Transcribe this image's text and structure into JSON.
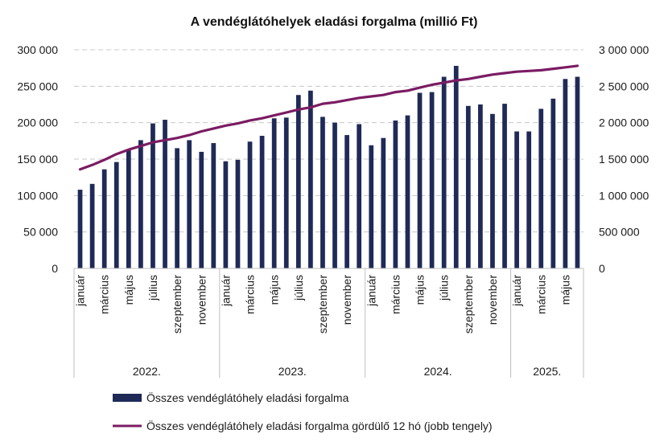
{
  "chart_data": {
    "type": "bar",
    "title": "A vendéglátóhelyek eladási forgalma (millió Ft)",
    "colors": {
      "bar": "#1f2a57",
      "line": "#7b1c63",
      "grid": "#c8c8c8",
      "axis": "#bfbfbf"
    },
    "left_axis": {
      "range": [
        0,
        300000
      ],
      "ticks": [
        "0",
        "50 000",
        "100 000",
        "150 000",
        "200 000",
        "250 000",
        "300 000"
      ]
    },
    "right_axis": {
      "range": [
        0,
        3000000
      ],
      "ticks": [
        "0",
        "500 000",
        "1 000 000",
        "1 500 000",
        "2 000 000",
        "2 500 000",
        "3 000 000"
      ]
    },
    "grid": true,
    "legend_placement": "bottom",
    "month_labels": [
      "január",
      "",
      "március",
      "",
      "május",
      "",
      "július",
      "",
      "szeptember",
      "",
      "november",
      "",
      "január",
      "",
      "március",
      "",
      "május",
      "",
      "július",
      "",
      "szeptember",
      "",
      "november",
      "",
      "január",
      "",
      "március",
      "",
      "május",
      "",
      "július",
      "",
      "szeptember",
      "",
      "november",
      "",
      "január",
      "",
      "március",
      "",
      "május",
      ""
    ],
    "years": [
      {
        "label": "2022.",
        "months": 12
      },
      {
        "label": "2023.",
        "months": 12
      },
      {
        "label": "2024.",
        "months": 12
      },
      {
        "label": "2025.",
        "months": 6
      }
    ],
    "series": [
      {
        "name": "Összes vendéglátóhely eladási forgalma",
        "kind": "bar",
        "axis": "left",
        "values": [
          108000,
          116000,
          136000,
          146000,
          162000,
          176000,
          199000,
          204000,
          165000,
          176000,
          160000,
          172000,
          147000,
          149000,
          174000,
          182000,
          206000,
          207000,
          238000,
          244000,
          208000,
          200000,
          183000,
          198000,
          169000,
          179000,
          203000,
          210000,
          241000,
          242000,
          263000,
          278000,
          223000,
          225000,
          212000,
          226000,
          188000,
          188000,
          219000,
          233000,
          260000,
          263000
        ]
      },
      {
        "name": "Összes vendéglátóhely eladási forgalma gördülő 12 hó (jobb tengely)",
        "kind": "line",
        "axis": "right",
        "values": [
          1360000,
          1420000,
          1490000,
          1570000,
          1630000,
          1680000,
          1730000,
          1760000,
          1790000,
          1830000,
          1880000,
          1920000,
          1960000,
          1990000,
          2030000,
          2060000,
          2100000,
          2140000,
          2180000,
          2210000,
          2260000,
          2280000,
          2310000,
          2340000,
          2360000,
          2380000,
          2420000,
          2440000,
          2480000,
          2520000,
          2550000,
          2580000,
          2600000,
          2630000,
          2660000,
          2680000,
          2700000,
          2710000,
          2720000,
          2740000,
          2760000,
          2780000
        ]
      }
    ]
  }
}
